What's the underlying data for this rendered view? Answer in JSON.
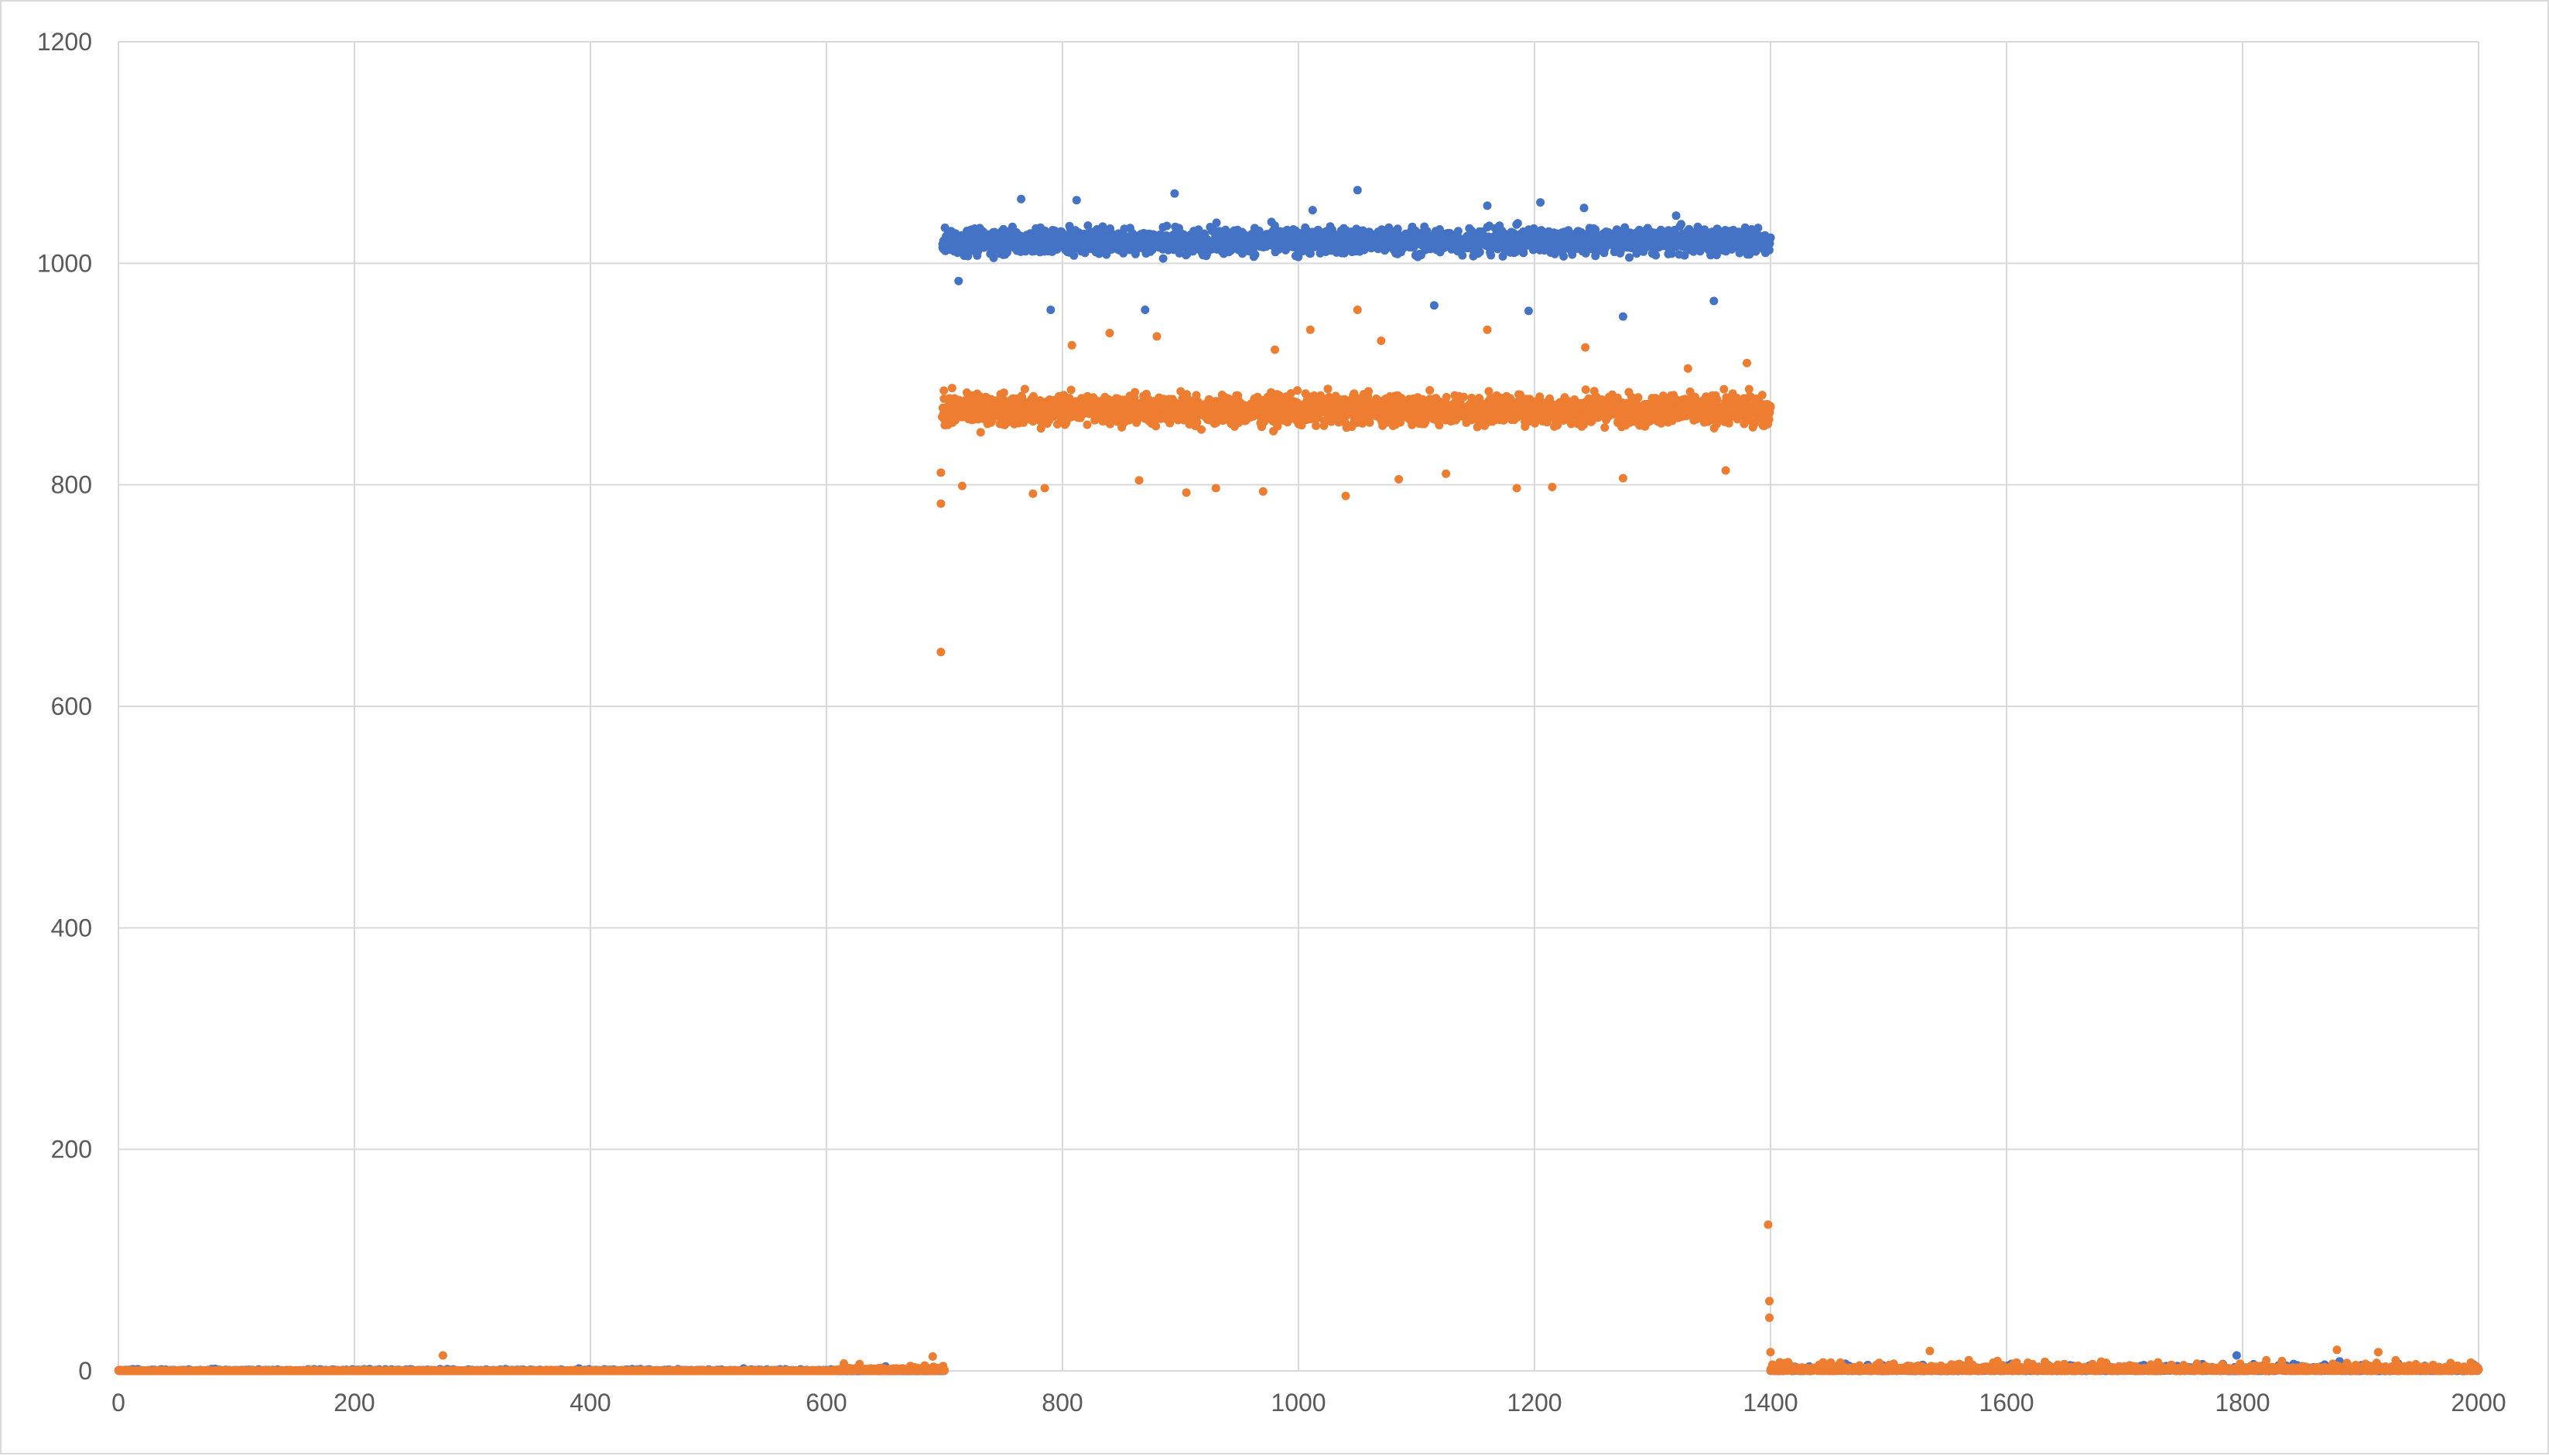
{
  "chart_data": {
    "type": "scatter",
    "title": "",
    "xlabel": "",
    "ylabel": "",
    "xlim": [
      0,
      2000
    ],
    "ylim": [
      0,
      1200
    ],
    "x_ticks": [
      0,
      200,
      400,
      600,
      800,
      1000,
      1200,
      1400,
      1600,
      1800,
      2000
    ],
    "y_ticks": [
      0,
      200,
      400,
      600,
      800,
      1000,
      1200
    ],
    "grid": true,
    "legend": "none",
    "series": [
      {
        "color": "#4472C4",
        "segments": [
          {
            "x_range": [
              0,
              700
            ],
            "y_center": 0,
            "y_spread": 2
          },
          {
            "x_range": [
              698,
              1400
            ],
            "y_center": 1020,
            "y_spread": 14
          },
          {
            "x_range": [
              1400,
              2000
            ],
            "y_center": 2,
            "y_spread": 6
          }
        ],
        "points": [
          {
            "x": 650,
            "y": 4
          },
          {
            "x": 765,
            "y": 1058
          },
          {
            "x": 812,
            "y": 1057
          },
          {
            "x": 895,
            "y": 1063
          },
          {
            "x": 1050,
            "y": 1066
          },
          {
            "x": 1160,
            "y": 1052
          },
          {
            "x": 1205,
            "y": 1055
          },
          {
            "x": 1242,
            "y": 1050
          },
          {
            "x": 1275,
            "y": 952
          },
          {
            "x": 1115,
            "y": 962
          },
          {
            "x": 790,
            "y": 958
          },
          {
            "x": 870,
            "y": 958
          },
          {
            "x": 1195,
            "y": 957
          },
          {
            "x": 1352,
            "y": 966
          },
          {
            "x": 1320,
            "y": 1043
          },
          {
            "x": 1012,
            "y": 1048
          },
          {
            "x": 712,
            "y": 984
          },
          {
            "x": 1795,
            "y": 14
          }
        ]
      },
      {
        "color": "#ED7D31",
        "segments": [
          {
            "x_range": [
              0,
              610
            ],
            "y_center": 0,
            "y_spread": 1
          },
          {
            "x_range": [
              610,
              700
            ],
            "y_center": 2,
            "y_spread": 5
          },
          {
            "x_range": [
              698,
              1400
            ],
            "y_center": 868,
            "y_spread": 16
          },
          {
            "x_range": [
              1400,
              2000
            ],
            "y_center": 3,
            "y_spread": 7
          }
        ],
        "points": [
          {
            "x": 697,
            "y": 649
          },
          {
            "x": 697,
            "y": 783
          },
          {
            "x": 697,
            "y": 811
          },
          {
            "x": 715,
            "y": 799
          },
          {
            "x": 775,
            "y": 792
          },
          {
            "x": 785,
            "y": 797
          },
          {
            "x": 808,
            "y": 926
          },
          {
            "x": 840,
            "y": 937
          },
          {
            "x": 865,
            "y": 804
          },
          {
            "x": 880,
            "y": 934
          },
          {
            "x": 905,
            "y": 793
          },
          {
            "x": 930,
            "y": 797
          },
          {
            "x": 970,
            "y": 794
          },
          {
            "x": 980,
            "y": 922
          },
          {
            "x": 1010,
            "y": 940
          },
          {
            "x": 1040,
            "y": 790
          },
          {
            "x": 1050,
            "y": 958
          },
          {
            "x": 1070,
            "y": 930
          },
          {
            "x": 1085,
            "y": 805
          },
          {
            "x": 1125,
            "y": 810
          },
          {
            "x": 1160,
            "y": 940
          },
          {
            "x": 1185,
            "y": 797
          },
          {
            "x": 1215,
            "y": 798
          },
          {
            "x": 1243,
            "y": 924
          },
          {
            "x": 1275,
            "y": 806
          },
          {
            "x": 1330,
            "y": 905
          },
          {
            "x": 1362,
            "y": 813
          },
          {
            "x": 1380,
            "y": 910
          },
          {
            "x": 275,
            "y": 14
          },
          {
            "x": 1398,
            "y": 132
          },
          {
            "x": 1399,
            "y": 63
          },
          {
            "x": 1399,
            "y": 48
          },
          {
            "x": 1400,
            "y": 17
          },
          {
            "x": 1535,
            "y": 18
          },
          {
            "x": 1880,
            "y": 19
          },
          {
            "x": 1915,
            "y": 17
          },
          {
            "x": 690,
            "y": 13
          }
        ]
      }
    ]
  }
}
